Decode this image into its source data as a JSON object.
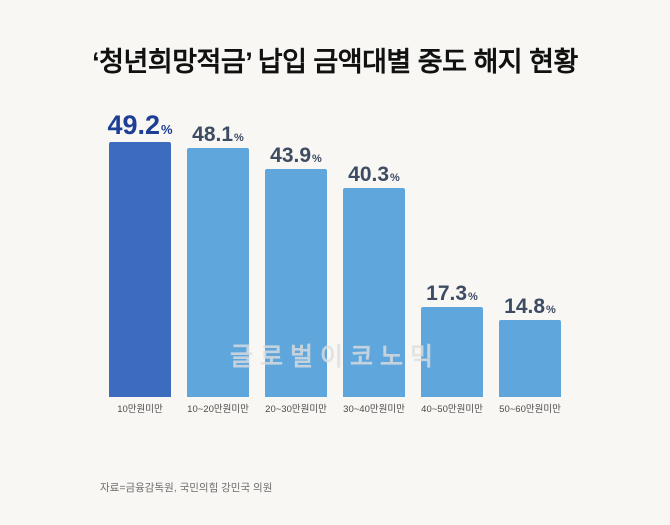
{
  "title": "‘청년희망적금’ 납입 금액대별 중도 해지 현황",
  "watermark": "글로벌이코노믹",
  "source": "자료=금융감독원, 국민의힘 강민국 의원",
  "colors": {
    "background": "#f8f7f4",
    "bar_primary": "#3d6cbe",
    "bar_secondary": "#5fa6dd",
    "label_primary": "#1e3e96",
    "label_secondary": "#3d4c63",
    "title_color": "#111111",
    "category_color": "#4b4b4b",
    "source_color": "#6e6e6e"
  },
  "chart_data": {
    "type": "bar",
    "title": "‘청년희망적금’ 납입 금액대별 중도 해지 현황",
    "categories": [
      "10만원미만",
      "10~20만원미만",
      "20~30만원미만",
      "30~40만원미만",
      "40~50만원미만",
      "50~60만원미만"
    ],
    "values": [
      49.2,
      48.1,
      43.9,
      40.3,
      17.3,
      14.8
    ],
    "unit": "%",
    "xlabel": "",
    "ylabel": "",
    "ylim": [
      0,
      55
    ],
    "grid": false,
    "legend": false,
    "highlight_index": 0
  }
}
